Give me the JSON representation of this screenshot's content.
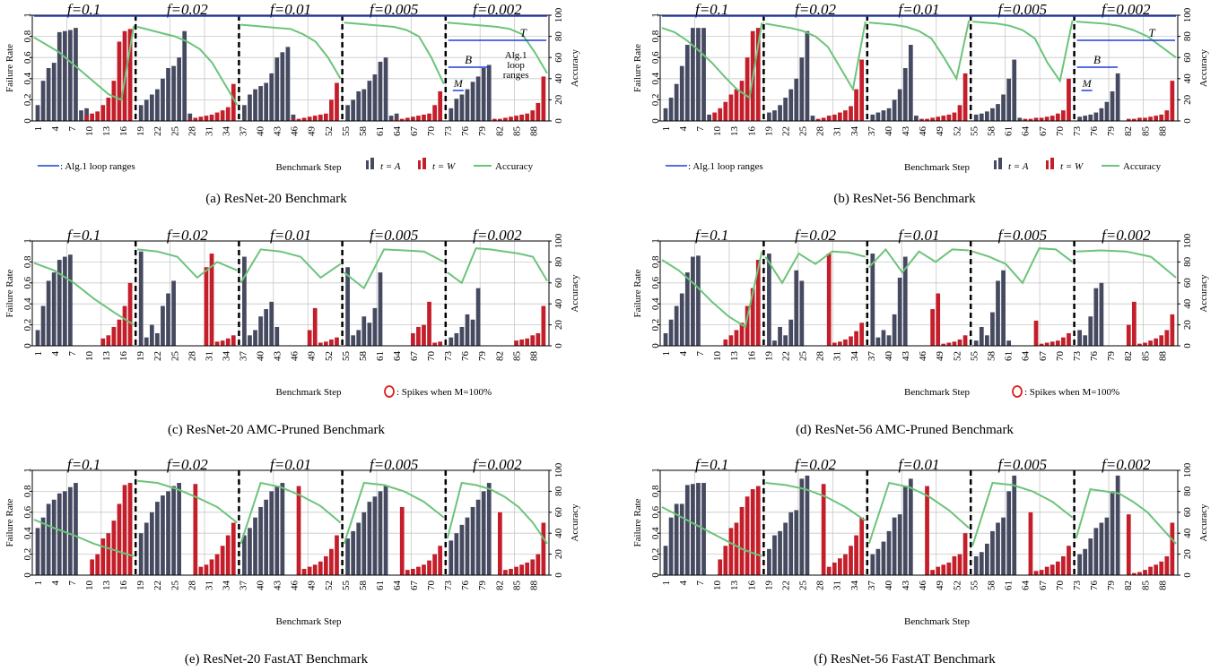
{
  "figure": {
    "f_labels": [
      "f=0.1",
      "f=0.02",
      "f=0.01",
      "f=0.005",
      "f=0.002"
    ],
    "y_left_label": "Failure Rate",
    "y_right_label": "Accuracy",
    "x_label": "Benchmark Step",
    "x_ticks": [
      "1",
      "4",
      "7",
      "10",
      "13",
      "16",
      "19",
      "22",
      "25",
      "28",
      "31",
      "34",
      "37",
      "40",
      "43",
      "46",
      "49",
      "52",
      "55",
      "58",
      "61",
      "64",
      "67",
      "70",
      "73",
      "76",
      "79",
      "82",
      "85",
      "88"
    ],
    "y_left_ticks": [
      "0",
      "0.2",
      "0.4",
      "0.6",
      "0.8",
      "1"
    ],
    "y_right_ticks": [
      "0",
      "20",
      "40",
      "60",
      "80",
      "100"
    ],
    "legend": {
      "loop_ranges": ": Alg.1 loop ranges",
      "t_a": "t = A",
      "t_w": "t = W",
      "accuracy": "Accuracy",
      "spikes": ": Spikes when M=100%"
    },
    "annotations": {
      "T": "T",
      "B": "B",
      "M": "M",
      "alg_loop": [
        "Alg.1",
        "loop",
        "ranges"
      ]
    },
    "colors": {
      "t_a": "#464a60",
      "t_w": "#c41e2a",
      "accuracy": "#6cc47a",
      "loop": "#1f3fd6",
      "spike": "#e02020",
      "grid": "#c8c8c8"
    }
  },
  "chart_data": [
    {
      "type": "bar",
      "caption": "(a) ResNet-20 Benchmark",
      "xlabel": "Benchmark Step",
      "ylabel": "Failure Rate",
      "y2label": "Accuracy",
      "ylim": [
        0,
        1
      ],
      "y2lim": [
        0,
        100
      ],
      "series": [
        {
          "name": "t = A",
          "values": [
            0.15,
            0.38,
            0.5,
            0.55,
            0.84,
            0.85,
            0.86,
            0.88,
            0.1,
            0.12,
            0.15,
            0.2,
            0.25,
            0.3,
            0.4,
            0.5,
            0.52,
            0.6,
            0.85,
            0.07,
            0.15,
            0.25,
            0.3,
            0.33,
            0.36,
            0.45,
            0.6,
            0.65,
            0.7,
            0.06,
            0.15,
            0.2,
            0.28,
            0.3,
            0.38,
            0.44,
            0.56,
            0.6,
            0.05,
            0.07,
            0.12,
            0.21,
            0.25,
            0.3,
            0.37,
            0.42,
            0.5,
            0.53
          ]
        },
        {
          "name": "t = W",
          "values": [
            0.05,
            0.07,
            0.09,
            0.15,
            0.22,
            0.38,
            0.75,
            0.85,
            0.87,
            0.02,
            0.03,
            0.04,
            0.05,
            0.06,
            0.08,
            0.1,
            0.13,
            0.35,
            0.02,
            0.02,
            0.03,
            0.04,
            0.05,
            0.06,
            0.07,
            0.2,
            0.36,
            0.02,
            0.02,
            0.03,
            0.04,
            0.05,
            0.06,
            0.07,
            0.15,
            0.28,
            0.02,
            0.02,
            0.03,
            0.04,
            0.05,
            0.06,
            0.07,
            0.1,
            0.17,
            0.42
          ]
        },
        {
          "name": "Accuracy",
          "values": [
            79,
            72,
            65,
            55,
            45,
            35,
            25,
            20,
            90,
            89,
            86,
            83,
            80,
            75,
            68,
            55,
            35,
            15,
            91,
            90,
            89,
            88,
            87,
            82,
            75,
            60,
            40,
            93,
            92,
            91,
            90,
            89,
            86,
            80,
            60,
            35,
            93,
            92,
            91,
            90,
            89,
            87,
            82,
            65,
            45
          ]
        }
      ]
    },
    {
      "type": "bar",
      "caption": "(b) ResNet-56 Benchmark",
      "xlabel": "Benchmark Step",
      "ylabel": "Failure Rate",
      "y2label": "Accuracy",
      "ylim": [
        0,
        1
      ],
      "y2lim": [
        0,
        100
      ],
      "series": [
        {
          "name": "t = A",
          "values": [
            0.12,
            0.22,
            0.35,
            0.52,
            0.72,
            0.88,
            0.88,
            0.88,
            0.06,
            0.08,
            0.1,
            0.15,
            0.22,
            0.3,
            0.4,
            0.6,
            0.85,
            0.05,
            0.06,
            0.08,
            0.1,
            0.12,
            0.2,
            0.3,
            0.5,
            0.72,
            0.05,
            0.06,
            0.07,
            0.09,
            0.12,
            0.16,
            0.25,
            0.4,
            0.58,
            0.03,
            0.04,
            0.05,
            0.06,
            0.08,
            0.12,
            0.18,
            0.28,
            0.45
          ]
        },
        {
          "name": "t = W",
          "values": [
            0.08,
            0.12,
            0.18,
            0.25,
            0.3,
            0.38,
            0.6,
            0.85,
            0.88,
            0.02,
            0.03,
            0.05,
            0.06,
            0.08,
            0.1,
            0.14,
            0.3,
            0.58,
            0.02,
            0.02,
            0.03,
            0.04,
            0.05,
            0.06,
            0.08,
            0.15,
            0.45,
            0.02,
            0.02,
            0.03,
            0.03,
            0.04,
            0.05,
            0.07,
            0.1,
            0.4,
            0.02,
            0.02,
            0.03,
            0.03,
            0.04,
            0.05,
            0.06,
            0.1,
            0.38
          ]
        },
        {
          "name": "Accuracy",
          "values": [
            88,
            84,
            76,
            66,
            55,
            42,
            30,
            22,
            93,
            92,
            90,
            88,
            85,
            80,
            70,
            50,
            30,
            94,
            93,
            92,
            91,
            89,
            85,
            78,
            60,
            40,
            95,
            94,
            93,
            92,
            90,
            86,
            78,
            55,
            38,
            95,
            94,
            93,
            92,
            90,
            86,
            80,
            70,
            60
          ]
        }
      ]
    },
    {
      "type": "bar",
      "caption": "(c) ResNet-20 AMC-Pruned Benchmark",
      "xlabel": "Benchmark Step",
      "ylabel": "Failure Rate",
      "y2label": "Accuracy",
      "ylim": [
        0,
        1
      ],
      "y2lim": [
        0,
        100
      ],
      "series": [
        {
          "name": "t = A",
          "values": [
            0.15,
            0.38,
            0.62,
            0.7,
            0.82,
            0.85,
            0.87,
            0.9,
            0.08,
            0.2,
            0.12,
            0.38,
            0.5,
            0.62,
            0.85,
            0.1,
            0.15,
            0.28,
            0.35,
            0.42,
            0.18,
            0.75,
            0.1,
            0.15,
            0.28,
            0.22,
            0.36,
            0.7,
            0.08,
            0.12,
            0.18,
            0.3,
            0.25,
            0.55
          ]
        },
        {
          "name": "t = W",
          "values": [
            0.07,
            0.1,
            0.18,
            0.25,
            0.38,
            0.6,
            0.75,
            0.88,
            0.04,
            0.05,
            0.07,
            0.1,
            0.15,
            0.36,
            0.03,
            0.04,
            0.06,
            0.08,
            0.12,
            0.18,
            0.2,
            0.42,
            0.03,
            0.04,
            0.05,
            0.06,
            0.07,
            0.1,
            0.12,
            0.38
          ]
        },
        {
          "name": "Accuracy",
          "values": [
            79,
            72,
            60,
            45,
            32,
            20,
            92,
            90,
            85,
            65,
            80,
            72,
            60,
            92,
            90,
            85,
            65,
            78,
            70,
            55,
            92,
            91,
            90,
            80,
            70,
            60,
            93,
            92,
            90,
            88,
            85,
            62
          ]
        }
      ]
    },
    {
      "type": "bar",
      "caption": "(d) ResNet-56 AMC-Pruned Benchmark",
      "xlabel": "Benchmark Step",
      "ylabel": "Failure Rate",
      "y2label": "Accuracy",
      "ylim": [
        0,
        1
      ],
      "y2lim": [
        0,
        100
      ],
      "series": [
        {
          "name": "t = A",
          "values": [
            0.12,
            0.25,
            0.38,
            0.5,
            0.7,
            0.85,
            0.86,
            0.88,
            0.05,
            0.18,
            0.1,
            0.25,
            0.72,
            0.62,
            0.88,
            0.08,
            0.15,
            0.1,
            0.3,
            0.65,
            0.85,
            0.05,
            0.18,
            0.1,
            0.32,
            0.62,
            0.72,
            0.05,
            0.15,
            0.1,
            0.28,
            0.55,
            0.6
          ]
        },
        {
          "name": "t = W",
          "values": [
            0.06,
            0.1,
            0.15,
            0.22,
            0.38,
            0.55,
            0.82,
            0.88,
            0.03,
            0.04,
            0.06,
            0.09,
            0.14,
            0.22,
            0.35,
            0.5,
            0.02,
            0.03,
            0.04,
            0.06,
            0.1,
            0.24,
            0.02,
            0.03,
            0.04,
            0.05,
            0.08,
            0.12,
            0.2,
            0.42,
            0.02,
            0.03,
            0.05,
            0.07,
            0.1,
            0.15,
            0.3
          ]
        },
        {
          "name": "Accuracy",
          "values": [
            82,
            72,
            58,
            42,
            28,
            18,
            90,
            85,
            60,
            88,
            78,
            90,
            89,
            85,
            75,
            92,
            70,
            90,
            80,
            92,
            91,
            90,
            85,
            78,
            60,
            93,
            92,
            80,
            90,
            91,
            90,
            85,
            65
          ]
        }
      ]
    },
    {
      "type": "bar",
      "caption": "(e) ResNet-20 FastAT Benchmark",
      "xlabel": "Benchmark Step",
      "ylabel": "Failure Rate",
      "y2label": "Accuracy",
      "ylim": [
        0,
        1
      ],
      "y2lim": [
        0,
        100
      ],
      "series": [
        {
          "name": "t = A",
          "values": [
            0.45,
            0.55,
            0.68,
            0.72,
            0.78,
            0.8,
            0.84,
            0.88,
            0.4,
            0.5,
            0.6,
            0.7,
            0.76,
            0.8,
            0.85,
            0.88,
            0.38,
            0.45,
            0.55,
            0.65,
            0.72,
            0.8,
            0.85,
            0.88,
            0.35,
            0.42,
            0.5,
            0.6,
            0.7,
            0.75,
            0.8,
            0.85,
            0.33,
            0.4,
            0.48,
            0.55,
            0.65,
            0.72,
            0.8,
            0.88
          ]
        },
        {
          "name": "t = W",
          "values": [
            0.15,
            0.2,
            0.35,
            0.4,
            0.52,
            0.68,
            0.86,
            0.88,
            0.87,
            0.08,
            0.1,
            0.15,
            0.2,
            0.28,
            0.38,
            0.5,
            0.85,
            0.06,
            0.08,
            0.1,
            0.13,
            0.18,
            0.25,
            0.38,
            0.65,
            0.05,
            0.06,
            0.08,
            0.1,
            0.14,
            0.2,
            0.28,
            0.6,
            0.05,
            0.06,
            0.08,
            0.1,
            0.12,
            0.15,
            0.2,
            0.5
          ]
        },
        {
          "name": "Accuracy",
          "values": [
            53,
            45,
            38,
            30,
            24,
            18,
            90,
            88,
            82,
            74,
            65,
            50,
            30,
            88,
            84,
            76,
            66,
            50,
            30,
            88,
            86,
            80,
            70,
            55,
            35,
            88,
            86,
            82,
            75,
            65,
            50,
            30
          ]
        }
      ]
    },
    {
      "type": "bar",
      "caption": "(f) ResNet-56 FastAT Benchmark",
      "xlabel": "Benchmark Step",
      "ylabel": "Failure Rate",
      "y2label": "Accuracy",
      "ylim": [
        0,
        1
      ],
      "y2lim": [
        0,
        100
      ],
      "series": [
        {
          "name": "t = A",
          "values": [
            0.28,
            0.55,
            0.68,
            0.68,
            0.86,
            0.87,
            0.88,
            0.88,
            0.25,
            0.38,
            0.42,
            0.5,
            0.6,
            0.62,
            0.92,
            0.95,
            0.2,
            0.25,
            0.32,
            0.42,
            0.55,
            0.58,
            0.85,
            0.92,
            0.18,
            0.22,
            0.3,
            0.42,
            0.5,
            0.55,
            0.8,
            0.95,
            0.2,
            0.25,
            0.35,
            0.45,
            0.5,
            0.55,
            0.8,
            0.95
          ]
        },
        {
          "name": "t = W",
          "values": [
            0.15,
            0.28,
            0.45,
            0.5,
            0.65,
            0.75,
            0.82,
            0.85,
            0.87,
            0.08,
            0.12,
            0.16,
            0.2,
            0.28,
            0.38,
            0.55,
            0.85,
            0.05,
            0.08,
            0.1,
            0.12,
            0.18,
            0.2,
            0.4,
            0.6,
            0.04,
            0.05,
            0.08,
            0.1,
            0.13,
            0.18,
            0.28,
            0.58,
            0.02,
            0.03,
            0.05,
            0.08,
            0.1,
            0.13,
            0.18,
            0.5
          ]
        },
        {
          "name": "Accuracy",
          "values": [
            65,
            55,
            45,
            35,
            25,
            18,
            88,
            86,
            82,
            75,
            65,
            52,
            30,
            88,
            84,
            75,
            62,
            45,
            28,
            88,
            86,
            80,
            70,
            55,
            35,
            82,
            80,
            78,
            70,
            60,
            45,
            30
          ]
        }
      ]
    }
  ]
}
